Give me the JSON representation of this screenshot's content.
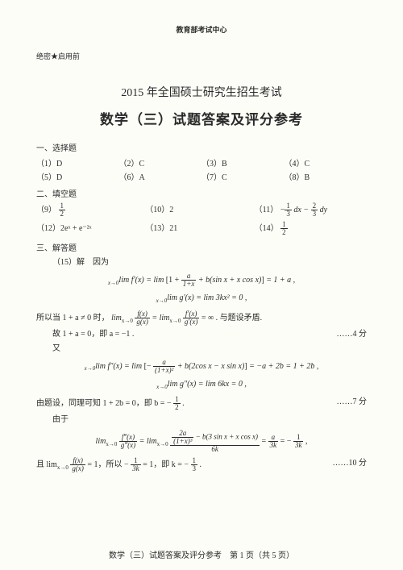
{
  "header": {
    "center": "教育部考试中心",
    "confidential": "绝密★启用前"
  },
  "titles": {
    "line1": "2015 年全国硕士研究生招生考试",
    "line2": "数学（三）试题答案及评分参考"
  },
  "sections": {
    "choice_head": "一、选择题",
    "fill_head": "二、填空题",
    "solve_head": "三、解答题"
  },
  "choice": {
    "r1": {
      "a": "（1）D",
      "b": "（2）C",
      "c": "（3）B",
      "d": "（4）C"
    },
    "r2": {
      "a": "（5）D",
      "b": "（6）A",
      "c": "（7）C",
      "d": "（8）B"
    }
  },
  "fill": {
    "r1": {
      "a_label": "（9）",
      "a_num": "1",
      "a_den": "2",
      "b": "（10）2",
      "c_label": "（11）",
      "c_num1": "1",
      "c_den1": "3",
      "c_mid": "dx −",
      "c_num2": "2",
      "c_den2": "3",
      "c_tail": "dy"
    },
    "r2": {
      "a": "（12）2eˣ + e⁻²ˣ",
      "b": "（13）21",
      "c_label": "（14）",
      "c_num": "1",
      "c_den": "2"
    }
  },
  "solution": {
    "q15_head": "（15）解　因为",
    "eq1_pre": "lim f′(x) = lim",
    "eq1_br_a": "1 +",
    "eq1_num_a": "a",
    "eq1_den_a": "1+x",
    "eq1_mid": " + b(sin x + x cos x)",
    "eq1_post": " = 1 + a ,",
    "eq2": "lim g′(x) = lim 3kx² = 0 ,",
    "line_contra_a": "所以当 1 + a ≠ 0 时，",
    "line_contra_b": "lim",
    "line_contra_num": "f(x)",
    "line_contra_den": "g(x)",
    "line_contra_c": " = lim",
    "line_contra_num2": "f′(x)",
    "line_contra_den2": "g′(x)",
    "line_contra_d": " = ∞ . 与题设矛盾.",
    "line_so_a": "故 1 + a = 0，即 a = −1 .",
    "score4": "……4 分",
    "you": "又",
    "eq3_pre": "lim f″(x) = lim",
    "eq3_br_a": "−",
    "eq3_num_a": "a",
    "eq3_den_a": "(1+x)²",
    "eq3_mid": " + b(2cos x − x sin x)",
    "eq3_post": " = −a + 2b = 1 + 2b ,",
    "eq4": "lim g″(x) = lim 6kx = 0 ,",
    "line_b": "由题设，同理可知 1 + 2b = 0，即 b = −",
    "b_num": "1",
    "b_den": "2",
    "b_tail": " .",
    "score7": "……7 分",
    "youyu": "由于",
    "eq5_pre": "lim",
    "eq5_num_a": "f‴(x)",
    "eq5_den_a": "g‴(x)",
    "eq5_mid": " = lim",
    "eq5_top_num": "2a",
    "eq5_top_den": "(1+x)³",
    "eq5_topmid": " − b(3 sin x + x cos x)",
    "eq5_bot": "6k",
    "eq5_eq": " = ",
    "eq5_num_b": "a",
    "eq5_den_b": "3k",
    "eq5_eq2": " = −",
    "eq5_num_c": "1",
    "eq5_den_c": "3k",
    "eq5_tail": " ,",
    "line_k_a": "且 lim",
    "k_num1": "f(x)",
    "k_den1": "g(x)",
    "line_k_b": " = 1，所以 −",
    "k_num2": "1",
    "k_den2": "3k",
    "line_k_c": " = 1，即 k = −",
    "k_num3": "1",
    "k_den3": "3",
    "line_k_d": " .",
    "score10": "……10 分"
  },
  "footer": {
    "text": "数学（三）试题答案及评分参考　第 1 页（共 5 页）"
  }
}
